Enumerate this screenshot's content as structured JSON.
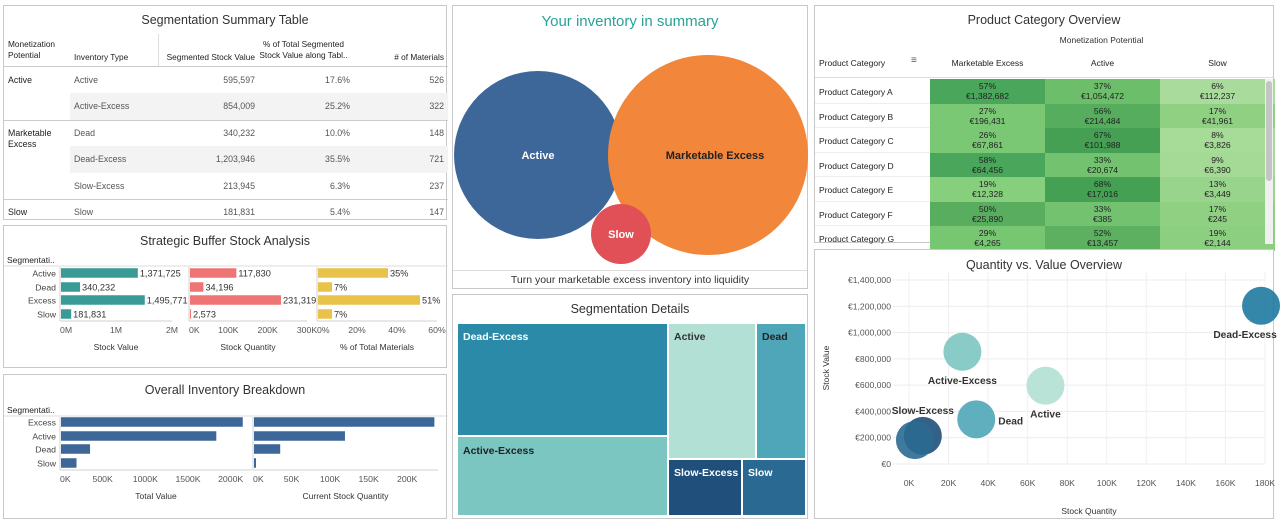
{
  "colors": {
    "teal": "#3a9a96",
    "coral": "#ef7474",
    "yellow": "#e9c24a",
    "navy": "#3e6799",
    "orange": "#f2863a",
    "red": "#e05056",
    "summary_teal": "#2aa198",
    "grid": "#e2e2e2"
  },
  "seg_table": {
    "title": "Segmentation Summary Table",
    "headers": [
      "Monetization Potential",
      "Inventory Type",
      "Segmented Stock Value",
      "% of Total Segmented Stock Value along Tabl..",
      "# of Materials"
    ],
    "groups": [
      {
        "name": "Active",
        "rows": [
          {
            "type": "Active",
            "value": "595,597",
            "pct": "17.6%",
            "materials": "526"
          },
          {
            "type": "Active-Excess",
            "value": "854,009",
            "pct": "25.2%",
            "materials": "322"
          }
        ]
      },
      {
        "name": "Marketable Excess",
        "rows": [
          {
            "type": "Dead",
            "value": "340,232",
            "pct": "10.0%",
            "materials": "148"
          },
          {
            "type": "Dead-Excess",
            "value": "1,203,946",
            "pct": "35.5%",
            "materials": "721"
          },
          {
            "type": "Slow-Excess",
            "value": "213,945",
            "pct": "6.3%",
            "materials": "237"
          }
        ]
      },
      {
        "name": "Slow",
        "rows": [
          {
            "type": "Slow",
            "value": "181,831",
            "pct": "5.4%",
            "materials": "147"
          }
        ]
      }
    ]
  },
  "buffer": {
    "title": "Strategic Buffer Stock Analysis",
    "row_header": "Segmentati..",
    "categories": [
      "Active",
      "Dead",
      "Excess",
      "Slow"
    ],
    "stock_value": {
      "axis_title": "Stock Value",
      "values": [
        1371725,
        340232,
        1495771,
        181831
      ],
      "labels": [
        "1,371,725",
        "340,232",
        "1,495,771",
        "181,831"
      ],
      "max": 2000000,
      "ticks": [
        "0M",
        "1M",
        "2M"
      ]
    },
    "stock_qty": {
      "axis_title": "Stock Quantity",
      "values": [
        117830,
        34196,
        231319,
        2573
      ],
      "labels": [
        "117,830",
        "34,196",
        "231,319",
        "2,573"
      ],
      "max": 300000,
      "ticks": [
        "0K",
        "100K",
        "200K",
        "300K"
      ]
    },
    "pct_materials": {
      "axis_title": "% of Total Materials",
      "values": [
        35,
        7,
        51,
        7
      ],
      "labels": [
        "35%",
        "7%",
        "51%",
        "7%"
      ],
      "max": 60,
      "ticks": [
        "0%",
        "20%",
        "40%",
        "60%"
      ]
    }
  },
  "breakdown": {
    "title": "Overall Inventory Breakdown",
    "row_header": "Segmentati..",
    "categories": [
      "Excess",
      "Active",
      "Dead",
      "Slow"
    ],
    "total_value": {
      "axis_title": "Total Value",
      "values": [
        2130000,
        1820000,
        340232,
        181831
      ],
      "max": 2250000,
      "ticks": [
        "0K",
        "500K",
        "1000K",
        "1500K",
        "2000K"
      ],
      "tick_values": [
        0,
        500000,
        1000000,
        1500000,
        2000000
      ]
    },
    "current_qty": {
      "axis_title": "Current Stock Quantity",
      "values": [
        234000,
        118000,
        34000,
        2600
      ],
      "max": 240000,
      "ticks": [
        "0K",
        "50K",
        "100K",
        "150K",
        "200K"
      ],
      "tick_values": [
        0,
        50000,
        100000,
        150000,
        200000
      ]
    }
  },
  "summary": {
    "title": "Your inventory in summary",
    "footer": "Turn your marketable excess inventory into liquidity",
    "bubbles": [
      {
        "label": "Active",
        "color": "#3e6799"
      },
      {
        "label": "Marketable Excess",
        "color": "#f2863a"
      },
      {
        "label": "Slow",
        "color": "#e05056"
      }
    ]
  },
  "treemap": {
    "title": "Segmentation Details",
    "tiles": [
      {
        "label": "Dead-Excess",
        "color": "#2a8aa8"
      },
      {
        "label": "Active-Excess",
        "color": "#7cc6c1"
      },
      {
        "label": "Active",
        "color": "#b2e0d4"
      },
      {
        "label": "Dead",
        "color": "#4fa6b8"
      },
      {
        "label": "Slow-Excess",
        "color": "#1f4f7a"
      },
      {
        "label": "Slow",
        "color": "#2a6a92"
      }
    ]
  },
  "product": {
    "title": "Product Category Overview",
    "subtitle": "Monetization Potential",
    "row_header": "Product Category",
    "columns": [
      "Marketable Excess",
      "Active",
      "Slow"
    ],
    "rows": [
      {
        "name": "Product Category A",
        "cells": [
          [
            "57%",
            "€1,382,682"
          ],
          [
            "37%",
            "€1,054,472"
          ],
          [
            "6%",
            "€112,237"
          ]
        ],
        "shades": [
          "#4aa65a",
          "#6cbe6a",
          "#a9dc9c"
        ]
      },
      {
        "name": "Product Category B",
        "cells": [
          [
            "27%",
            "€196,431"
          ],
          [
            "56%",
            "€214,484"
          ],
          [
            "17%",
            "€41,961"
          ]
        ],
        "shades": [
          "#7ac874",
          "#56ad5e",
          "#8fd083"
        ]
      },
      {
        "name": "Product Category C",
        "cells": [
          [
            "26%",
            "€67,861"
          ],
          [
            "67%",
            "€101,988"
          ],
          [
            "8%",
            "€3,826"
          ]
        ],
        "shades": [
          "#7ac874",
          "#46a054",
          "#a6db98"
        ]
      },
      {
        "name": "Product Category D",
        "cells": [
          [
            "58%",
            "€64,456"
          ],
          [
            "33%",
            "€20,674"
          ],
          [
            "9%",
            "€6,390"
          ]
        ],
        "shades": [
          "#4aa65a",
          "#72c270",
          "#a4d996"
        ]
      },
      {
        "name": "Product Category E",
        "cells": [
          [
            "19%",
            "€12,328"
          ],
          [
            "68%",
            "€17,016"
          ],
          [
            "13%",
            "€3,449"
          ]
        ],
        "shades": [
          "#86cf7c",
          "#44a052",
          "#98d48b"
        ]
      },
      {
        "name": "Product Category F",
        "cells": [
          [
            "50%",
            "€25,890"
          ],
          [
            "33%",
            "€385"
          ],
          [
            "17%",
            "€245"
          ]
        ],
        "shades": [
          "#58ae5e",
          "#72c270",
          "#8fd083"
        ]
      },
      {
        "name": "Product Category G",
        "cells": [
          [
            "29%",
            "€4,265"
          ],
          [
            "52%",
            "€13,457"
          ],
          [
            "19%",
            "€2,144"
          ]
        ],
        "shades": [
          "#76c672",
          "#5cb060",
          "#8ccf81"
        ]
      }
    ]
  },
  "scatter": {
    "title": "Quantity vs. Value Overview",
    "xlabel": "Stock Quantity",
    "ylabel": "Stock Value"
  },
  "chart_data": [
    {
      "type": "scatter",
      "title": "Quantity vs. Value Overview",
      "xlabel": "Stock Quantity",
      "ylabel": "Stock Value",
      "xlim": [
        0,
        180000
      ],
      "ylim": [
        0,
        1400000
      ],
      "x_ticks": [
        "0K",
        "20K",
        "40K",
        "60K",
        "80K",
        "100K",
        "120K",
        "140K",
        "160K",
        "180K"
      ],
      "y_ticks": [
        "€0",
        "€200,000",
        "€400,000",
        "€600,000",
        "€800,000",
        "€1,000,000",
        "€1,200,000",
        "€1,400,000"
      ],
      "points": [
        {
          "name": "Dead-Excess",
          "x": 178000,
          "y": 1204000,
          "color": "#1f7aa0",
          "label_pos": "below"
        },
        {
          "name": "Active-Excess",
          "x": 27000,
          "y": 854000,
          "color": "#7cc6c1",
          "label_pos": "below"
        },
        {
          "name": "Active",
          "x": 69000,
          "y": 596000,
          "color": "#b2e0d4",
          "label_pos": "below"
        },
        {
          "name": "Dead",
          "x": 34000,
          "y": 340000,
          "color": "#4fa6b8",
          "label_pos": "right"
        },
        {
          "name": "Slow-Excess",
          "x": 7000,
          "y": 214000,
          "color": "#1f4f7a",
          "label_pos": "above"
        },
        {
          "name": "Slow",
          "x": 3000,
          "y": 182000,
          "color": "#2a6a92",
          "label_pos": "none"
        }
      ]
    }
  ]
}
